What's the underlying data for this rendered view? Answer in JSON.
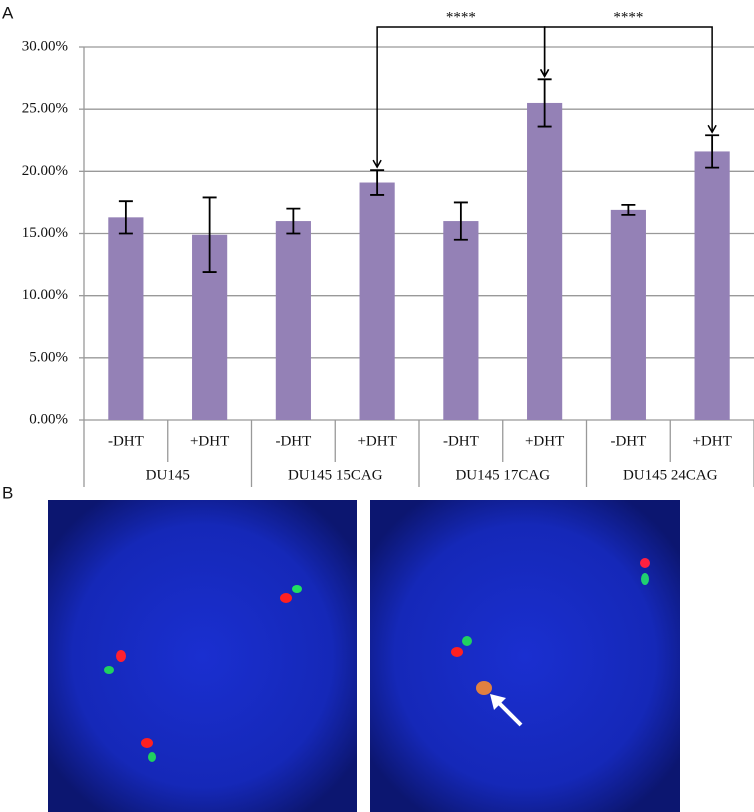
{
  "panel_labels": [
    "A",
    "B"
  ],
  "chart_data": {
    "type": "bar",
    "categories": [
      "-DHT",
      "+DHT",
      "-DHT",
      "+DHT",
      "-DHT",
      "+DHT",
      "-DHT",
      "+DHT"
    ],
    "groups": [
      "DU145",
      "DU145  15CAG",
      "DU145 17CAG",
      "DU145 24CAG"
    ],
    "values": [
      16.3,
      14.9,
      16.0,
      19.1,
      16.0,
      25.5,
      16.9,
      21.6
    ],
    "errors": [
      1.3,
      3.0,
      1.0,
      1.0,
      1.5,
      1.9,
      0.4,
      1.3
    ],
    "color": "#9481b6",
    "ylim": [
      0,
      30
    ],
    "yticks": [
      {
        "value": 0,
        "label": "0.00%"
      },
      {
        "value": 5,
        "label": "5.00%"
      },
      {
        "value": 10,
        "label": "10.00%"
      },
      {
        "value": 15,
        "label": "15.00%"
      },
      {
        "value": 20,
        "label": "20.00%"
      },
      {
        "value": 25,
        "label": "25.00%"
      },
      {
        "value": 30,
        "label": "30.00%"
      }
    ],
    "grid": true,
    "annotations": [
      "****",
      "****"
    ]
  }
}
